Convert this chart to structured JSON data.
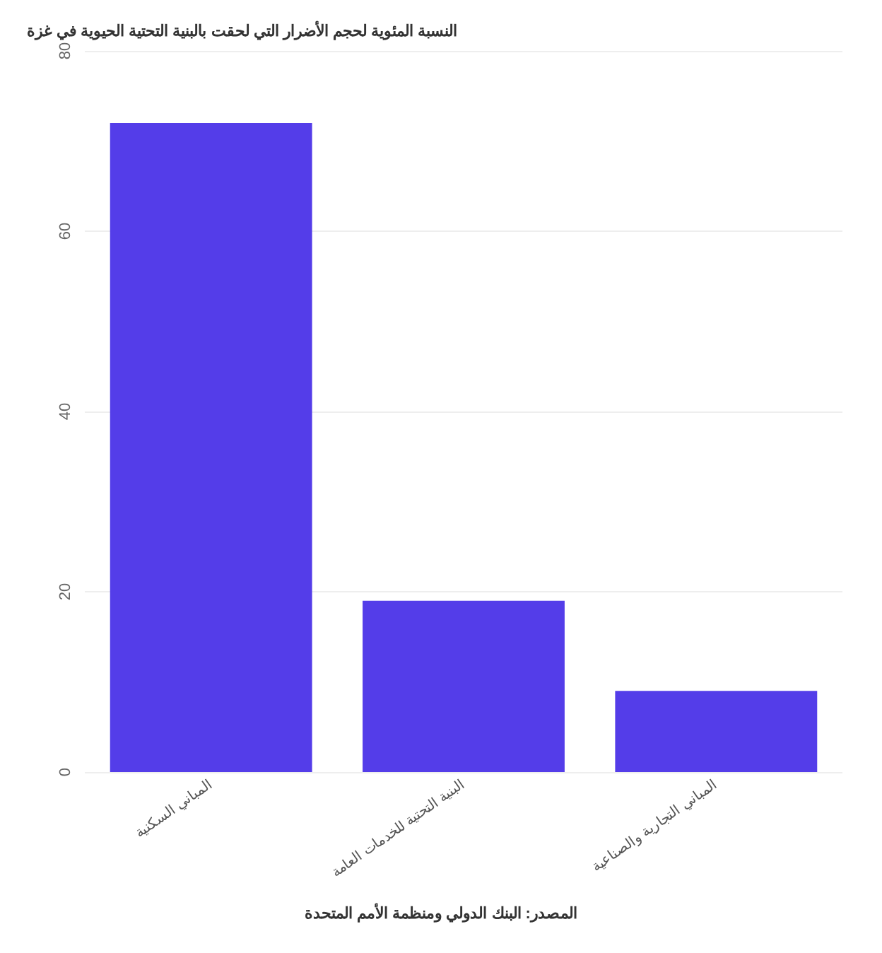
{
  "chart_data": {
    "type": "bar",
    "title": "النسبة المئوية لحجم الأضرار التي لحقت بالبنية التحتية الحيوية في غزة",
    "categories": [
      "المباني السكنية",
      "البنية التحتية للخدمات العامة",
      "المباني التجارية والصناعية"
    ],
    "values": [
      72,
      19,
      9
    ],
    "color": "#543de9",
    "ylim": [
      0,
      80
    ],
    "yticks": [
      0,
      20,
      40,
      60,
      80
    ],
    "grid": "y",
    "annotations": [
      "المصدر: البنك الدولي ومنظمة الأمم المتحدة"
    ]
  }
}
